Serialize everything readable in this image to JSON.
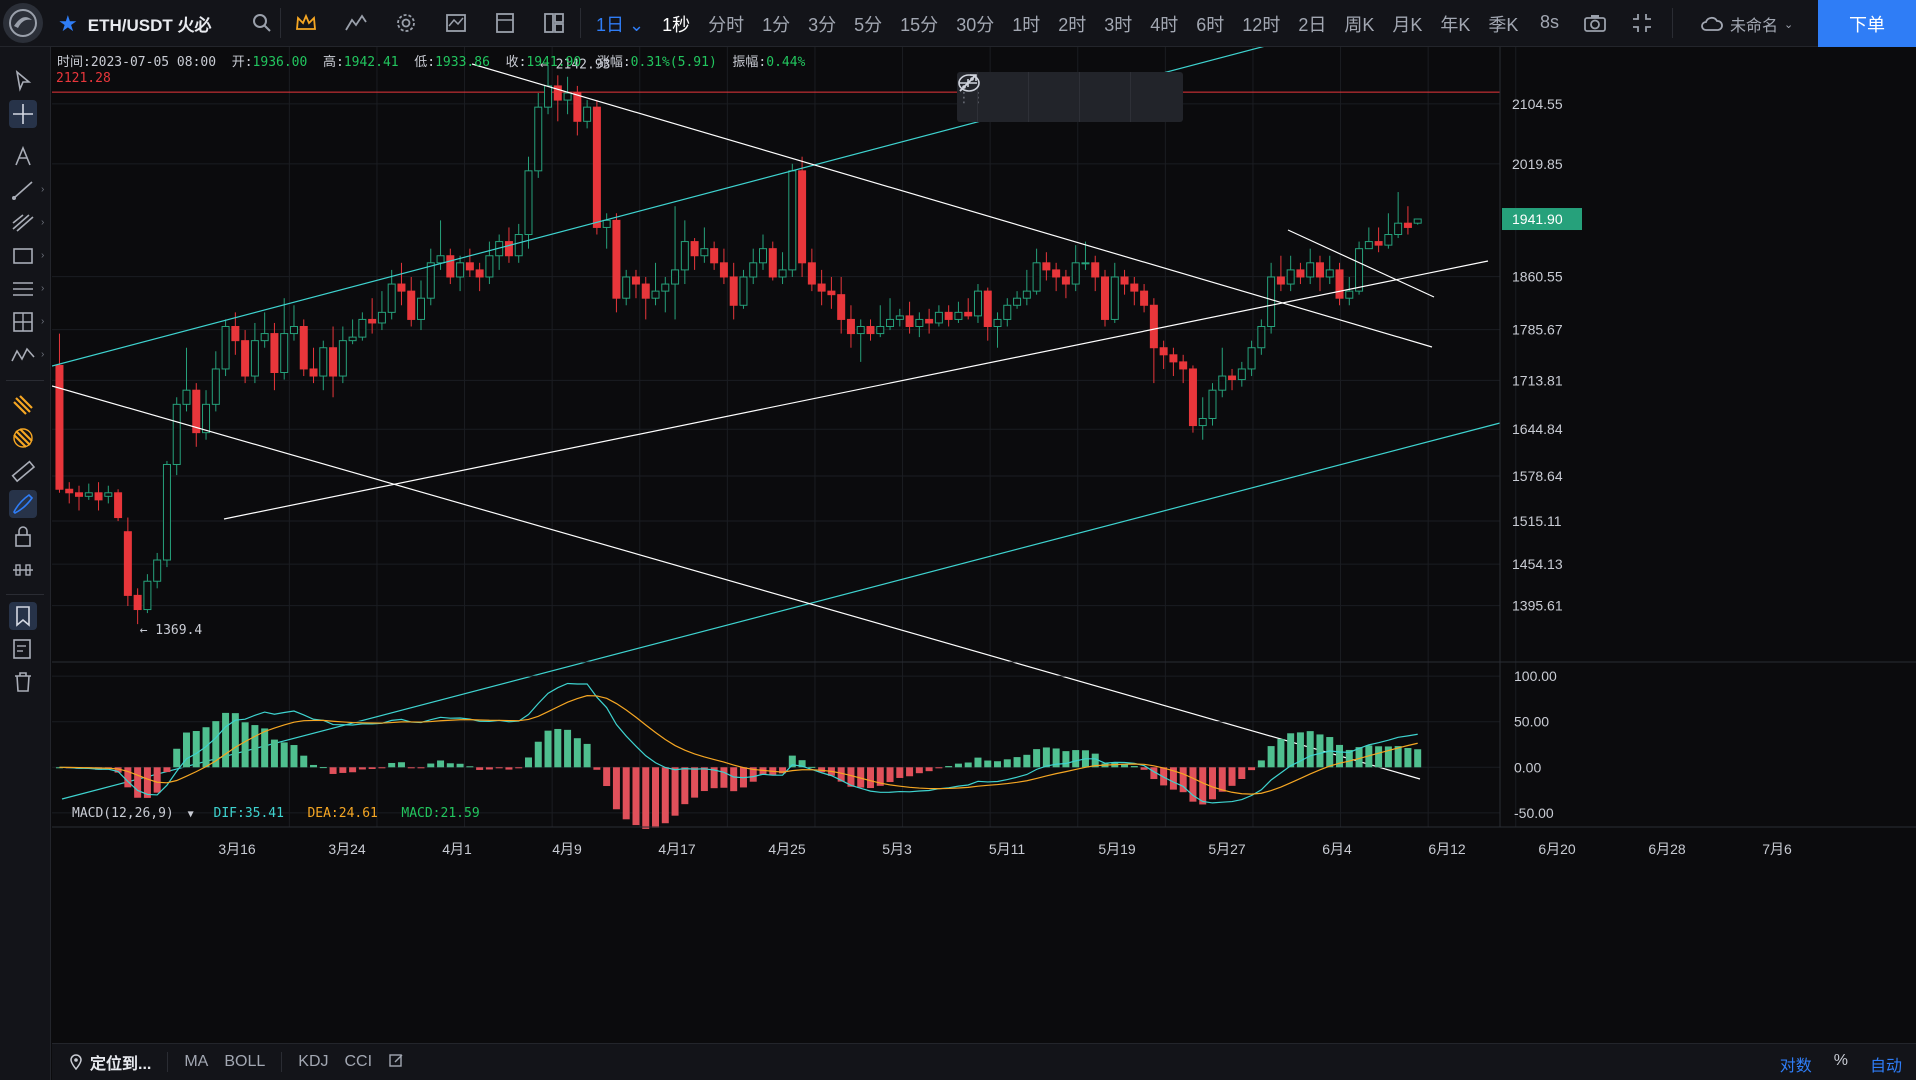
{
  "topbar": {
    "symbol": "ETH/USDT 火必",
    "intervals": [
      {
        "label": "1日",
        "state": "active",
        "dropdown": true
      },
      {
        "label": "1秒",
        "state": "current"
      },
      {
        "label": "分时"
      },
      {
        "label": "1分"
      },
      {
        "label": "3分"
      },
      {
        "label": "5分"
      },
      {
        "label": "15分"
      },
      {
        "label": "30分"
      },
      {
        "label": "1时"
      },
      {
        "label": "2时"
      },
      {
        "label": "3时"
      },
      {
        "label": "4时"
      },
      {
        "label": "6时"
      },
      {
        "label": "12时"
      },
      {
        "label": "2日"
      },
      {
        "label": "周K"
      },
      {
        "label": "月K"
      },
      {
        "label": "年K"
      },
      {
        "label": "季K"
      }
    ],
    "countdown": "8s",
    "layout_name": "未命名",
    "order_button": "下单",
    "accent_color": "#2f7df6"
  },
  "ohlc": {
    "time_label": "时间:",
    "time": "2023-07-05 08:00",
    "open_label": "开:",
    "open": "1936.00",
    "high_label": "高:",
    "high": "1942.41",
    "low_label": "低:",
    "low": "1933.86",
    "close_label": "收:",
    "close": "1941.90",
    "change_label": "涨幅:",
    "change": "0.31%(5.91)",
    "amp_label": "振幅:",
    "amp": "0.44%"
  },
  "hline_price": "2121.28",
  "chart_data": {
    "type": "candlestick",
    "up_color": "#26a17b",
    "down_color": "#e8363b",
    "y_axis_ticks": [
      "2104.55",
      "2019.85",
      "1860.55",
      "1785.67",
      "1713.81",
      "1644.84",
      "1578.64",
      "1515.11",
      "1454.13",
      "1395.61"
    ],
    "last_price": "1941.90",
    "x_ticks": [
      "3月16",
      "3月24",
      "4月1",
      "4月9",
      "4月17",
      "4月25",
      "5月3",
      "5月11",
      "5月19",
      "5月27",
      "6月4",
      "6月12",
      "6月20",
      "6月28",
      "7月6"
    ],
    "max_annotation": "2142.93",
    "min_annotation": "1369.4",
    "candles": [
      [
        1735,
        1560,
        1780,
        1555
      ],
      [
        1560,
        1555,
        1570,
        1540
      ],
      [
        1555,
        1550,
        1565,
        1530
      ],
      [
        1550,
        1555,
        1568,
        1545
      ],
      [
        1555,
        1545,
        1570,
        1530
      ],
      [
        1550,
        1555,
        1565,
        1540
      ],
      [
        1555,
        1520,
        1560,
        1515
      ],
      [
        1500,
        1410,
        1520,
        1395
      ],
      [
        1410,
        1390,
        1420,
        1369.4
      ],
      [
        1390,
        1430,
        1440,
        1385
      ],
      [
        1430,
        1460,
        1470,
        1420
      ],
      [
        1460,
        1595,
        1600,
        1450
      ],
      [
        1595,
        1680,
        1690,
        1580
      ],
      [
        1680,
        1700,
        1760,
        1670
      ],
      [
        1700,
        1640,
        1710,
        1620
      ],
      [
        1640,
        1680,
        1700,
        1630
      ],
      [
        1680,
        1730,
        1755,
        1670
      ],
      [
        1730,
        1790,
        1800,
        1720
      ],
      [
        1790,
        1770,
        1810,
        1750
      ],
      [
        1770,
        1720,
        1785,
        1710
      ],
      [
        1720,
        1770,
        1795,
        1710
      ],
      [
        1770,
        1780,
        1810,
        1760
      ],
      [
        1780,
        1725,
        1795,
        1700
      ],
      [
        1725,
        1780,
        1830,
        1715
      ],
      [
        1780,
        1790,
        1820,
        1770
      ],
      [
        1790,
        1730,
        1800,
        1720
      ],
      [
        1730,
        1720,
        1760,
        1710
      ],
      [
        1720,
        1760,
        1770,
        1700
      ],
      [
        1760,
        1720,
        1790,
        1690
      ],
      [
        1720,
        1770,
        1790,
        1710
      ],
      [
        1770,
        1775,
        1800,
        1765
      ],
      [
        1775,
        1800,
        1810,
        1770
      ],
      [
        1800,
        1795,
        1830,
        1780
      ],
      [
        1795,
        1810,
        1840,
        1785
      ],
      [
        1810,
        1850,
        1870,
        1800
      ],
      [
        1850,
        1840,
        1880,
        1820
      ],
      [
        1840,
        1800,
        1860,
        1790
      ],
      [
        1800,
        1830,
        1855,
        1785
      ],
      [
        1830,
        1880,
        1900,
        1820
      ],
      [
        1880,
        1890,
        1940,
        1870
      ],
      [
        1890,
        1860,
        1900,
        1850
      ],
      [
        1860,
        1880,
        1890,
        1840
      ],
      [
        1880,
        1870,
        1900,
        1860
      ],
      [
        1870,
        1860,
        1880,
        1840
      ],
      [
        1860,
        1890,
        1910,
        1850
      ],
      [
        1890,
        1910,
        1920,
        1870
      ],
      [
        1910,
        1890,
        1930,
        1880
      ],
      [
        1890,
        1920,
        1935,
        1880
      ],
      [
        1920,
        2010,
        2030,
        1900
      ],
      [
        2010,
        2100,
        2120,
        2000
      ],
      [
        2100,
        2130,
        2160,
        2090
      ],
      [
        2130,
        2110,
        2145,
        2080
      ],
      [
        2110,
        2120,
        2142.93,
        2090
      ],
      [
        2120,
        2080,
        2130,
        2060
      ],
      [
        2080,
        2100,
        2110,
        2070
      ],
      [
        2100,
        1930,
        2110,
        1920
      ],
      [
        1930,
        1940,
        1950,
        1900
      ],
      [
        1940,
        1830,
        1950,
        1810
      ],
      [
        1830,
        1860,
        1870,
        1820
      ],
      [
        1860,
        1850,
        1870,
        1830
      ],
      [
        1850,
        1830,
        1860,
        1800
      ],
      [
        1830,
        1840,
        1880,
        1820
      ],
      [
        1840,
        1850,
        1860,
        1810
      ],
      [
        1850,
        1870,
        1960,
        1800
      ],
      [
        1870,
        1910,
        1940,
        1850
      ],
      [
        1910,
        1890,
        1915,
        1870
      ],
      [
        1890,
        1900,
        1930,
        1880
      ],
      [
        1900,
        1880,
        1910,
        1870
      ],
      [
        1880,
        1860,
        1900,
        1850
      ],
      [
        1860,
        1820,
        1880,
        1800
      ],
      [
        1820,
        1860,
        1870,
        1815
      ],
      [
        1860,
        1880,
        1900,
        1850
      ],
      [
        1880,
        1900,
        1920,
        1870
      ],
      [
        1900,
        1860,
        1910,
        1855
      ],
      [
        1860,
        1870,
        1895,
        1850
      ],
      [
        1870,
        2010,
        2020,
        1860
      ],
      [
        2010,
        1880,
        2030,
        1860
      ],
      [
        1880,
        1850,
        1900,
        1840
      ],
      [
        1850,
        1840,
        1870,
        1820
      ],
      [
        1840,
        1835,
        1860,
        1815
      ],
      [
        1835,
        1800,
        1860,
        1780
      ],
      [
        1800,
        1780,
        1820,
        1760
      ],
      [
        1780,
        1790,
        1800,
        1740
      ],
      [
        1790,
        1780,
        1800,
        1770
      ],
      [
        1780,
        1790,
        1820,
        1775
      ],
      [
        1790,
        1800,
        1830,
        1785
      ],
      [
        1800,
        1805,
        1815,
        1790
      ],
      [
        1805,
        1790,
        1825,
        1780
      ],
      [
        1790,
        1800,
        1810,
        1775
      ],
      [
        1800,
        1795,
        1815,
        1780
      ],
      [
        1795,
        1810,
        1820,
        1790
      ],
      [
        1810,
        1800,
        1820,
        1790
      ],
      [
        1800,
        1810,
        1825,
        1795
      ],
      [
        1810,
        1805,
        1830,
        1800
      ],
      [
        1805,
        1840,
        1850,
        1795
      ],
      [
        1840,
        1790,
        1845,
        1770
      ],
      [
        1790,
        1800,
        1810,
        1760
      ],
      [
        1800,
        1820,
        1830,
        1790
      ],
      [
        1820,
        1830,
        1840,
        1815
      ],
      [
        1830,
        1840,
        1870,
        1820
      ],
      [
        1840,
        1880,
        1900,
        1835
      ],
      [
        1880,
        1870,
        1895,
        1855
      ],
      [
        1870,
        1860,
        1880,
        1840
      ],
      [
        1860,
        1850,
        1870,
        1830
      ],
      [
        1850,
        1880,
        1905,
        1840
      ],
      [
        1880,
        1880,
        1910,
        1870
      ],
      [
        1880,
        1860,
        1890,
        1840
      ],
      [
        1860,
        1800,
        1870,
        1790
      ],
      [
        1800,
        1860,
        1880,
        1795
      ],
      [
        1860,
        1850,
        1870,
        1835
      ],
      [
        1850,
        1840,
        1860,
        1820
      ],
      [
        1840,
        1820,
        1850,
        1810
      ],
      [
        1820,
        1760,
        1830,
        1710
      ],
      [
        1760,
        1750,
        1770,
        1730
      ],
      [
        1750,
        1740,
        1760,
        1720
      ],
      [
        1740,
        1730,
        1750,
        1710
      ],
      [
        1730,
        1650,
        1735,
        1640
      ],
      [
        1650,
        1660,
        1690,
        1630
      ],
      [
        1660,
        1700,
        1710,
        1650
      ],
      [
        1700,
        1720,
        1760,
        1690
      ],
      [
        1720,
        1715,
        1730,
        1700
      ],
      [
        1715,
        1730,
        1740,
        1705
      ],
      [
        1730,
        1760,
        1770,
        1720
      ],
      [
        1760,
        1790,
        1800,
        1750
      ],
      [
        1790,
        1860,
        1880,
        1780
      ],
      [
        1860,
        1850,
        1890,
        1840
      ],
      [
        1850,
        1870,
        1890,
        1840
      ],
      [
        1870,
        1860,
        1880,
        1850
      ],
      [
        1860,
        1880,
        1900,
        1850
      ],
      [
        1880,
        1860,
        1890,
        1840
      ],
      [
        1860,
        1870,
        1890,
        1850
      ],
      [
        1870,
        1830,
        1880,
        1820
      ],
      [
        1830,
        1840,
        1860,
        1820
      ],
      [
        1840,
        1900,
        1910,
        1835
      ],
      [
        1900,
        1910,
        1930,
        1900
      ],
      [
        1910,
        1905,
        1930,
        1895
      ],
      [
        1905,
        1920,
        1950,
        1900
      ],
      [
        1920,
        1936,
        1980,
        1915
      ],
      [
        1936,
        1930,
        1960,
        1920
      ],
      [
        1936,
        1941.9,
        1942.41,
        1933.86
      ]
    ]
  },
  "macd": {
    "name": "MACD(12,26,9)",
    "dif_label": "DIF:",
    "dif": "35.41",
    "dea_label": "DEA:",
    "dea": "24.61",
    "macd_label": "MACD:",
    "macd_value": "21.59",
    "y_ticks": [
      "100.00",
      "50.00",
      "0.00",
      "-50.00"
    ],
    "dif_color": "#3ed3cf",
    "dea_color": "#f5a623"
  },
  "bottombar": {
    "locate": "定位到...",
    "indicators": [
      "MA",
      "BOLL",
      "KDJ",
      "CCI"
    ],
    "right": [
      "对数",
      "%",
      "自动"
    ]
  },
  "tools": [
    "cursor-icon",
    "crosshair-icon",
    "text-icon",
    "trendline-icon",
    "fib-icon",
    "rectangle-icon",
    "channel-icon",
    "pattern-icon",
    "wave-icon",
    "magnet-icon",
    "magnet-strong-icon",
    "ruler-icon",
    "brush-icon",
    "lock-icon",
    "measure-icon",
    "favorites-icon",
    "edit-list-icon",
    "trash-icon"
  ]
}
